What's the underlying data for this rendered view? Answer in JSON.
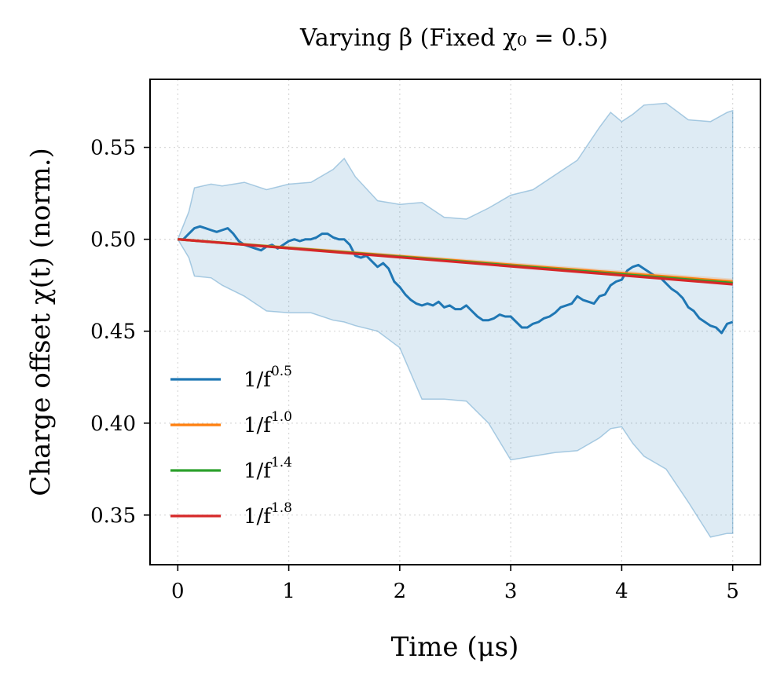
{
  "chart_data": {
    "type": "line",
    "title": "Varying β (Fixed χ₀ = 0.5)",
    "xlabel": "Time (μs)",
    "ylabel": "Charge offset χ(t) (norm.)",
    "xlim": [
      -0.25,
      5.25
    ],
    "ylim": [
      0.323,
      0.587
    ],
    "xticks": [
      0,
      1,
      2,
      3,
      4,
      5
    ],
    "xtick_labels": [
      "0",
      "1",
      "2",
      "3",
      "4",
      "5"
    ],
    "yticks": [
      0.35,
      0.4,
      0.45,
      0.5,
      0.55
    ],
    "ytick_labels": [
      "0.35",
      "0.40",
      "0.45",
      "0.50",
      "0.55"
    ],
    "grid": true,
    "legend_position": "lower-left",
    "band": {
      "series": "1/f^0.5",
      "color": "#1f77b4",
      "x": [
        0,
        0.1,
        0.15,
        0.3,
        0.4,
        0.6,
        0.8,
        1.0,
        1.2,
        1.4,
        1.5,
        1.6,
        1.8,
        2.0,
        2.2,
        2.4,
        2.6,
        2.8,
        3.0,
        3.2,
        3.4,
        3.6,
        3.8,
        3.9,
        4.0,
        4.1,
        4.2,
        4.4,
        4.6,
        4.8,
        4.95,
        5.0
      ],
      "upper": [
        0.5,
        0.515,
        0.528,
        0.53,
        0.529,
        0.531,
        0.527,
        0.53,
        0.531,
        0.538,
        0.544,
        0.534,
        0.521,
        0.519,
        0.52,
        0.512,
        0.511,
        0.517,
        0.524,
        0.527,
        0.535,
        0.543,
        0.561,
        0.569,
        0.564,
        0.568,
        0.573,
        0.574,
        0.565,
        0.564,
        0.569,
        0.57
      ],
      "lower": [
        0.5,
        0.49,
        0.48,
        0.479,
        0.475,
        0.469,
        0.461,
        0.46,
        0.46,
        0.456,
        0.455,
        0.453,
        0.45,
        0.441,
        0.413,
        0.413,
        0.412,
        0.4,
        0.38,
        0.382,
        0.384,
        0.385,
        0.392,
        0.397,
        0.398,
        0.389,
        0.382,
        0.375,
        0.357,
        0.338,
        0.34,
        0.34
      ]
    },
    "series": [
      {
        "name": "1/f^0.5",
        "base": "1/f",
        "exp": "0.5",
        "color": "#1f77b4",
        "x": [
          0,
          0.05,
          0.1,
          0.15,
          0.2,
          0.25,
          0.3,
          0.35,
          0.4,
          0.45,
          0.5,
          0.55,
          0.6,
          0.65,
          0.7,
          0.75,
          0.8,
          0.85,
          0.9,
          0.95,
          1.0,
          1.05,
          1.1,
          1.15,
          1.2,
          1.25,
          1.3,
          1.35,
          1.4,
          1.45,
          1.5,
          1.55,
          1.6,
          1.65,
          1.7,
          1.75,
          1.8,
          1.85,
          1.9,
          1.95,
          2.0,
          2.05,
          2.1,
          2.15,
          2.2,
          2.25,
          2.3,
          2.35,
          2.4,
          2.45,
          2.5,
          2.55,
          2.6,
          2.65,
          2.7,
          2.75,
          2.8,
          2.85,
          2.9,
          2.95,
          3.0,
          3.05,
          3.1,
          3.15,
          3.2,
          3.25,
          3.3,
          3.35,
          3.4,
          3.45,
          3.5,
          3.55,
          3.6,
          3.65,
          3.7,
          3.75,
          3.8,
          3.85,
          3.9,
          3.95,
          4.0,
          4.05,
          4.1,
          4.15,
          4.2,
          4.25,
          4.3,
          4.35,
          4.4,
          4.45,
          4.5,
          4.55,
          4.6,
          4.65,
          4.7,
          4.75,
          4.8,
          4.85,
          4.9,
          4.95,
          5.0
        ],
        "values": [
          0.5,
          0.5,
          0.503,
          0.506,
          0.507,
          0.506,
          0.505,
          0.504,
          0.505,
          0.506,
          0.503,
          0.499,
          0.497,
          0.496,
          0.495,
          0.494,
          0.496,
          0.497,
          0.495,
          0.497,
          0.499,
          0.5,
          0.499,
          0.5,
          0.5,
          0.501,
          0.503,
          0.503,
          0.501,
          0.5,
          0.5,
          0.497,
          0.491,
          0.49,
          0.491,
          0.488,
          0.485,
          0.487,
          0.484,
          0.477,
          0.474,
          0.47,
          0.467,
          0.465,
          0.464,
          0.465,
          0.464,
          0.466,
          0.463,
          0.464,
          0.462,
          0.462,
          0.464,
          0.461,
          0.458,
          0.456,
          0.456,
          0.457,
          0.459,
          0.458,
          0.458,
          0.455,
          0.452,
          0.452,
          0.454,
          0.455,
          0.457,
          0.458,
          0.46,
          0.463,
          0.464,
          0.465,
          0.469,
          0.467,
          0.466,
          0.465,
          0.469,
          0.47,
          0.475,
          0.477,
          0.478,
          0.483,
          0.485,
          0.486,
          0.484,
          0.482,
          0.48,
          0.479,
          0.476,
          0.473,
          0.471,
          0.468,
          0.463,
          0.461,
          0.457,
          0.455,
          0.453,
          0.452,
          0.449,
          0.454,
          0.455
        ]
      },
      {
        "name": "1/f^1.0",
        "base": "1/f",
        "exp": "1.0",
        "color": "#ff7f0e",
        "x": [
          0,
          5
        ],
        "values": [
          0.5,
          0.477
        ]
      },
      {
        "name": "1/f^1.4",
        "base": "1/f",
        "exp": "1.4",
        "color": "#2ca02c",
        "x": [
          0,
          5
        ],
        "values": [
          0.5,
          0.4762
        ]
      },
      {
        "name": "1/f^1.8",
        "base": "1/f",
        "exp": "1.8",
        "color": "#d62728",
        "x": [
          0,
          5
        ],
        "values": [
          0.5,
          0.4755
        ]
      }
    ]
  }
}
